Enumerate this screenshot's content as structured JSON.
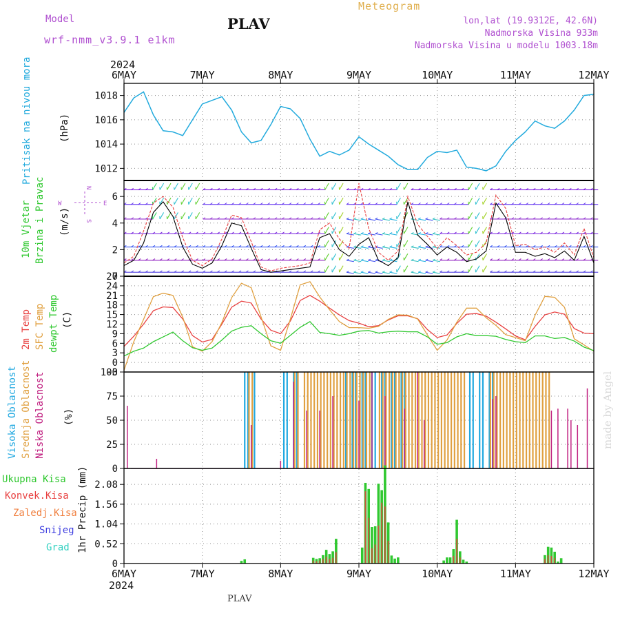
{
  "header": {
    "model_label": "Model",
    "model_name": "wrf-nmm_v3.9.1 e1km",
    "station": "PLAV",
    "title": "Meteogram",
    "lonlat": "lon,lat (19.9312E, 42.6N)",
    "elevation": "Nadmorska Visina 933m",
    "model_elevation": "Nadmorska Visina u modelu 1003.18m",
    "watermark": "made by Angel"
  },
  "footer": {
    "station": "PLAV"
  },
  "x_axis": {
    "year": "2024",
    "ticks": [
      "6MAY",
      "7MAY",
      "8MAY",
      "9MAY",
      "10MAY",
      "11MAY",
      "12MAY"
    ]
  },
  "colors": {
    "pressure": "#22aadd",
    "t2m": "#e84040",
    "tsfc": "#e0a040",
    "dewpt": "#30c830",
    "cloud_high": "#20a8e0",
    "cloud_mid": "#e0a040",
    "cloud_low": "#c02080",
    "precip_total": "#30c830",
    "precip_conv": "#e84040",
    "precip_strat": "#f08040",
    "snow": "#4040e0",
    "hail": "#30d0c0",
    "model_label": "#b050d0",
    "title": "#e0b050"
  },
  "panels": {
    "pressure": {
      "ylabel_name": "Pritisak na nivou mora",
      "unit": "(hPa)"
    },
    "wind": {
      "ylabel_line1": "10m Vjetar",
      "ylabel_line2": "Brzina i Pravac",
      "unit": "(m/s)",
      "compass_n": "N",
      "compass_s": "S",
      "compass_w": "W",
      "compass_e": "E"
    },
    "temp": {
      "ylabel_t2m": "2m Temp",
      "ylabel_sfc": "SFC Temp",
      "ylabel_dew": "dewpt Temp",
      "unit": "(C)"
    },
    "cloud": {
      "ylabel_high": "Visoka Oblacnost",
      "ylabel_mid": "Srednja Oblacnost",
      "ylabel_low": "Niska Oblacnost",
      "unit": "(%)"
    },
    "precip": {
      "ylabel": "1hr Precip (mm)",
      "legend": [
        "Ukupna Kisa",
        "Konvek.Kisa",
        "Zaledj.Kisa",
        "Snijeg",
        "Grad"
      ]
    }
  },
  "chart_data": [
    {
      "type": "line",
      "title": "",
      "ylabel": "(hPa)",
      "ylim": [
        1011,
        1019
      ],
      "yticks": [
        1012,
        1014,
        1016,
        1018
      ],
      "grid": true,
      "x_hours": [
        0,
        3,
        6,
        9,
        12,
        15,
        18,
        21,
        24,
        27,
        30,
        33,
        36,
        39,
        42,
        45,
        48,
        51,
        54,
        57,
        60,
        63,
        66,
        69,
        72,
        75,
        78,
        81,
        84,
        87,
        90,
        93,
        96,
        99,
        102,
        105,
        108,
        111,
        114,
        117,
        120,
        123,
        126,
        129,
        132,
        135,
        138,
        141,
        144
      ],
      "series": [
        {
          "values": [
            1016.6,
            1017.8,
            1018.3,
            1016.4,
            1015.1,
            1015.0,
            1014.7,
            1016.0,
            1017.3,
            1017.6,
            1017.9,
            1016.8,
            1015.0,
            1014.1,
            1014.3,
            1015.6,
            1017.1,
            1016.9,
            1016.1,
            1014.4,
            1013.0,
            1013.4,
            1013.1,
            1013.5,
            1014.6,
            1014.0,
            1013.5,
            1013.0,
            1012.3,
            1011.9,
            1011.9,
            1012.9,
            1013.4,
            1013.3,
            1013.5,
            1012.1,
            1012.0,
            1011.8,
            1012.2,
            1013.4,
            1014.3,
            1015.0,
            1015.9,
            1015.5,
            1015.3,
            1015.9,
            1016.8,
            1018.0,
            1018.1
          ]
        }
      ]
    },
    {
      "type": "line",
      "title": "",
      "ylabel": "(m/s)",
      "ylim": [
        0,
        7.2
      ],
      "yticks": [
        0,
        2,
        4,
        6
      ],
      "grid": true,
      "x_hours": [
        0,
        3,
        6,
        9,
        12,
        15,
        18,
        21,
        24,
        27,
        30,
        33,
        36,
        39,
        42,
        45,
        48,
        51,
        54,
        57,
        60,
        63,
        66,
        69,
        72,
        75,
        78,
        81,
        84,
        87,
        90,
        93,
        96,
        99,
        102,
        105,
        108,
        111,
        114,
        117,
        120,
        123,
        126,
        129,
        132,
        135,
        138,
        141,
        144
      ],
      "series": [
        {
          "name": "speed",
          "values": [
            0.8,
            1.2,
            2.5,
            4.8,
            5.6,
            4.5,
            2.2,
            0.9,
            0.6,
            1.0,
            2.3,
            4.0,
            3.8,
            2.1,
            0.5,
            0.3,
            0.4,
            0.5,
            0.6,
            0.7,
            2.9,
            3.2,
            2.0,
            1.5,
            2.4,
            2.9,
            1.2,
            0.8,
            1.4,
            5.6,
            3.1,
            2.4,
            1.6,
            2.2,
            1.8,
            1.1,
            1.3,
            1.9,
            5.5,
            4.4,
            1.8,
            1.8,
            1.5,
            1.7,
            1.4,
            1.9,
            1.2,
            3.0,
            1.0
          ]
        },
        {
          "name": "gust",
          "values": [
            1.0,
            1.5,
            3.4,
            5.5,
            6.0,
            5.2,
            2.9,
            1.2,
            0.8,
            1.3,
            2.8,
            4.6,
            4.4,
            2.6,
            0.7,
            0.4,
            0.6,
            0.7,
            0.8,
            1.0,
            3.5,
            4.0,
            2.8,
            2.1,
            7.0,
            3.6,
            1.8,
            1.2,
            1.9,
            6.0,
            3.9,
            3.0,
            2.1,
            2.9,
            2.3,
            1.6,
            1.8,
            2.5,
            6.1,
            5.1,
            2.3,
            2.4,
            2.0,
            2.2,
            1.8,
            2.5,
            1.6,
            3.6,
            1.4
          ]
        }
      ]
    },
    {
      "type": "line",
      "title": "",
      "ylabel": "(C)",
      "ylim": [
        -3,
        27
      ],
      "yticks": [
        -3,
        0,
        3,
        6,
        9,
        12,
        15,
        18,
        21,
        24,
        27
      ],
      "grid": true,
      "x_hours": [
        0,
        3,
        6,
        9,
        12,
        15,
        18,
        21,
        24,
        27,
        30,
        33,
        36,
        39,
        42,
        45,
        48,
        51,
        54,
        57,
        60,
        63,
        66,
        69,
        72,
        75,
        78,
        81,
        84,
        87,
        90,
        93,
        96,
        99,
        102,
        105,
        108,
        111,
        114,
        117,
        120,
        123,
        126,
        129,
        132,
        135,
        138,
        141,
        144
      ],
      "series": [
        {
          "name": "2m Temp",
          "values": [
            5.0,
            8.2,
            12.0,
            16.2,
            17.4,
            17.2,
            13.6,
            8.4,
            6.4,
            7.2,
            12.0,
            17.3,
            19.2,
            18.6,
            13.6,
            10.1,
            9.0,
            13.0,
            19.4,
            21.0,
            19.2,
            17.0,
            14.9,
            13.1,
            12.3,
            11.2,
            11.5,
            13.3,
            14.6,
            14.6,
            13.7,
            10.3,
            7.8,
            8.6,
            12.2,
            15.1,
            15.3,
            14.5,
            12.6,
            10.5,
            8.3,
            7.1,
            11.3,
            14.9,
            15.8,
            15.1,
            10.6,
            9.2,
            9.0
          ]
        },
        {
          "name": "SFC Temp",
          "values": [
            -2.5,
            6.5,
            13.5,
            20.6,
            21.7,
            21.0,
            14.2,
            4.9,
            3.5,
            6.5,
            12.5,
            20.3,
            24.8,
            23.4,
            14.3,
            5.2,
            3.8,
            13.6,
            24.3,
            25.3,
            20.5,
            16.5,
            12.8,
            10.9,
            10.9,
            10.7,
            11.3,
            13.5,
            14.9,
            14.8,
            13.6,
            8.6,
            3.8,
            7.0,
            12.6,
            17.0,
            17.0,
            14.0,
            11.6,
            8.7,
            7.8,
            6.8,
            14.8,
            20.7,
            20.4,
            17.3,
            7.4,
            5.5,
            3.5
          ]
        },
        {
          "name": "dewpt Temp",
          "values": [
            2.0,
            3.5,
            4.5,
            6.5,
            8.0,
            9.5,
            6.8,
            4.6,
            3.8,
            4.5,
            7.0,
            9.8,
            11.0,
            11.5,
            9.0,
            6.8,
            6.0,
            8.5,
            11.0,
            12.8,
            9.4,
            9.0,
            8.5,
            9.0,
            9.8,
            10.0,
            9.2,
            9.6,
            9.8,
            9.6,
            9.6,
            8.0,
            5.7,
            6.2,
            8.0,
            9.0,
            8.4,
            8.4,
            8.2,
            7.2,
            6.5,
            6.2,
            8.3,
            8.3,
            7.5,
            7.8,
            6.7,
            4.8,
            3.7
          ]
        }
      ]
    },
    {
      "type": "bar",
      "title": "",
      "ylabel": "(%)",
      "ylim": [
        0,
        100
      ],
      "yticks": [
        0,
        25,
        50,
        75,
        100
      ],
      "grid": true,
      "note": "hourly cloud fraction; high (blue), mid (orange), low (magenta)",
      "series": [
        {
          "name": "Visoka Oblacnost",
          "type": "ranges",
          "value": 100,
          "ranges_hours": [
            [
              37,
              40
            ],
            [
              49,
              54
            ],
            [
              68,
              86
            ],
            [
              105,
              113
            ]
          ]
        },
        {
          "name": "Srednja Oblacnost",
          "type": "ranges",
          "value": 100,
          "ranges_hours": [
            [
              38,
              39
            ],
            [
              52,
              53
            ],
            [
              55,
              75
            ],
            [
              78,
              104
            ],
            [
              112,
              124
            ],
            [
              125,
              130
            ]
          ]
        },
        {
          "name": "Niska Oblacnost",
          "points": [
            [
              1,
              65
            ],
            [
              10,
              10
            ],
            [
              39,
              45
            ],
            [
              48,
              8
            ],
            [
              52,
              90
            ],
            [
              56,
              60
            ],
            [
              60,
              60
            ],
            [
              64,
              75
            ],
            [
              72,
              70
            ],
            [
              76,
              100
            ],
            [
              80,
              75
            ],
            [
              86,
              62
            ],
            [
              90,
              100
            ],
            [
              92,
              50
            ],
            [
              113,
              72
            ],
            [
              114,
              75
            ],
            [
              131,
              60
            ],
            [
              133,
              62
            ],
            [
              136,
              62
            ],
            [
              137,
              50
            ],
            [
              139,
              45
            ],
            [
              142,
              83
            ]
          ]
        }
      ]
    },
    {
      "type": "bar",
      "title": "",
      "ylabel": "1hr Precip (mm)",
      "ylim": [
        0,
        2.5
      ],
      "yticks": [
        0,
        0.52,
        1.04,
        1.56,
        2.08
      ],
      "ytick_labels": [
        "0",
        "0.52",
        "1.04",
        "1.56",
        "2.08"
      ],
      "grid": true,
      "series": [
        {
          "name": "Ukupna Kisa",
          "points": [
            [
              36,
              0.07
            ],
            [
              37,
              0.11
            ],
            [
              58,
              0.15
            ],
            [
              59,
              0.12
            ],
            [
              60,
              0.14
            ],
            [
              61,
              0.22
            ],
            [
              62,
              0.36
            ],
            [
              63,
              0.25
            ],
            [
              64,
              0.32
            ],
            [
              65,
              0.65
            ],
            [
              73,
              0.42
            ],
            [
              74,
              2.12
            ],
            [
              75,
              1.96
            ],
            [
              76,
              0.96
            ],
            [
              77,
              0.98
            ],
            [
              78,
              2.1
            ],
            [
              79,
              1.93
            ],
            [
              80,
              2.58
            ],
            [
              81,
              1.08
            ],
            [
              82,
              0.21
            ],
            [
              83,
              0.13
            ],
            [
              84,
              0.16
            ],
            [
              98,
              0.08
            ],
            [
              99,
              0.16
            ],
            [
              100,
              0.16
            ],
            [
              101,
              0.38
            ],
            [
              102,
              1.15
            ],
            [
              103,
              0.32
            ],
            [
              104,
              0.1
            ],
            [
              105,
              0.05
            ],
            [
              129,
              0.22
            ],
            [
              130,
              0.44
            ],
            [
              131,
              0.42
            ],
            [
              132,
              0.31
            ],
            [
              133,
              0.05
            ],
            [
              134,
              0.14
            ]
          ]
        },
        {
          "name": "Konvek.Kisa",
          "points": [
            [
              58,
              0.08
            ],
            [
              59,
              0.06
            ],
            [
              60,
              0.08
            ],
            [
              61,
              0.12
            ],
            [
              62,
              0.18
            ],
            [
              63,
              0.12
            ],
            [
              64,
              0.15
            ],
            [
              65,
              0.3
            ],
            [
              74,
              1.9
            ],
            [
              75,
              1.2
            ],
            [
              76,
              0.4
            ],
            [
              77,
              0.5
            ],
            [
              78,
              1.0
            ],
            [
              79,
              1.6
            ],
            [
              80,
              1.5
            ],
            [
              81,
              0.6
            ],
            [
              101,
              0.2
            ],
            [
              102,
              0.65
            ],
            [
              103,
              0.16
            ],
            [
              129,
              0.12
            ],
            [
              130,
              0.22
            ],
            [
              131,
              0.2
            ],
            [
              132,
              0.15
            ]
          ]
        }
      ]
    }
  ]
}
